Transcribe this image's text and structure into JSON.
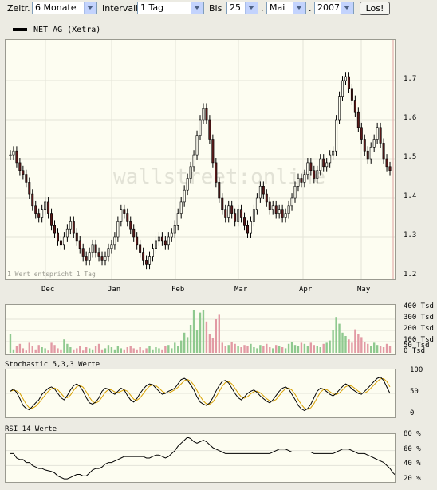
{
  "toolbar": {
    "zeitr_label": "Zeitr.",
    "zeitr_value": "6 Monate",
    "intervall_label": "Intervall",
    "intervall_value": "1 Tag",
    "bis_label": "Bis",
    "day_value": "25",
    "month_value": "Mai",
    "year_value": "2007",
    "sep": ".",
    "go_label": "Los!"
  },
  "legend": {
    "label": "NET AG (Xetra)"
  },
  "main": {
    "note": "1 Wert entspricht 1 Tag",
    "watermark": "wallstreet:online",
    "months": [
      "Dec",
      "Jan",
      "Feb",
      "Mar",
      "Apr",
      "May"
    ],
    "yticks": [
      "1.7",
      "1.6",
      "1.5",
      "1.4",
      "1.3",
      "1.2"
    ]
  },
  "volume": {
    "yticks": [
      "400 Tsd",
      "300 Tsd",
      "200 Tsd",
      "100 Tsd",
      "50 Tsd",
      "0 Tsd"
    ]
  },
  "stochastic": {
    "title": "Stochastic 5,3,3 Werte",
    "yticks": [
      "100",
      "50",
      "0"
    ]
  },
  "rsi": {
    "title": "RSI 14 Werte",
    "yticks": [
      "80 %",
      "60 %",
      "40 %",
      "20 %"
    ]
  },
  "colors": {
    "up": "#fdfdf1",
    "down": "#5a1a1a",
    "vol_up": "#8fc98f",
    "vol_down": "#e29aa4",
    "stoch_k": "#000000",
    "stoch_d": "#d8a000",
    "grid": "#e3e3d8"
  },
  "chart_data": [
    {
      "type": "candlestick",
      "title": "NET AG (Xetra)",
      "x_categories_months": [
        "Dec",
        "Jan",
        "Feb",
        "Mar",
        "Apr",
        "May"
      ],
      "ylim": [
        1.2,
        1.8
      ],
      "close": [
        1.51,
        1.52,
        1.49,
        1.47,
        1.46,
        1.44,
        1.41,
        1.38,
        1.36,
        1.35,
        1.37,
        1.39,
        1.36,
        1.33,
        1.31,
        1.29,
        1.28,
        1.3,
        1.32,
        1.34,
        1.31,
        1.29,
        1.27,
        1.25,
        1.24,
        1.26,
        1.28,
        1.26,
        1.25,
        1.24,
        1.25,
        1.27,
        1.28,
        1.3,
        1.34,
        1.37,
        1.36,
        1.34,
        1.32,
        1.3,
        1.28,
        1.26,
        1.24,
        1.23,
        1.25,
        1.27,
        1.29,
        1.3,
        1.29,
        1.28,
        1.3,
        1.31,
        1.33,
        1.36,
        1.39,
        1.42,
        1.45,
        1.48,
        1.51,
        1.56,
        1.6,
        1.63,
        1.6,
        1.55,
        1.49,
        1.44,
        1.4,
        1.37,
        1.35,
        1.38,
        1.36,
        1.34,
        1.37,
        1.35,
        1.33,
        1.31,
        1.34,
        1.37,
        1.4,
        1.43,
        1.41,
        1.39,
        1.37,
        1.38,
        1.36,
        1.37,
        1.35,
        1.36,
        1.38,
        1.4,
        1.43,
        1.45,
        1.44,
        1.46,
        1.49,
        1.47,
        1.45,
        1.47,
        1.5,
        1.48,
        1.49,
        1.51,
        1.52,
        1.6,
        1.66,
        1.7,
        1.71,
        1.68,
        1.65,
        1.62,
        1.58,
        1.55,
        1.52,
        1.5,
        1.53,
        1.55,
        1.58,
        1.54,
        1.5,
        1.48,
        1.47
      ]
    },
    {
      "type": "bar",
      "title": "",
      "ylim": [
        0,
        400
      ],
      "values": [
        170,
        30,
        60,
        80,
        40,
        20,
        90,
        60,
        30,
        70,
        50,
        40,
        20,
        90,
        70,
        40,
        30,
        120,
        80,
        50,
        30,
        40,
        60,
        20,
        50,
        40,
        30,
        60,
        80,
        30,
        40,
        70,
        50,
        30,
        60,
        40,
        30,
        50,
        60,
        40,
        30,
        50,
        20,
        40,
        60,
        30,
        50,
        40,
        30,
        60,
        70,
        40,
        90,
        60,
        110,
        180,
        140,
        250,
        380,
        200,
        360,
        380,
        280,
        170,
        130,
        300,
        340,
        90,
        60,
        70,
        100,
        80,
        60,
        50,
        70,
        60,
        80,
        50,
        40,
        70,
        60,
        80,
        50,
        40,
        70,
        60,
        50,
        40,
        80,
        100,
        70,
        60,
        90,
        80,
        60,
        90,
        70,
        60,
        50,
        80,
        90,
        110,
        200,
        320,
        260,
        180,
        150,
        120,
        90,
        210,
        170,
        140,
        100,
        80,
        60,
        90,
        70,
        60,
        50,
        80,
        60
      ]
    },
    {
      "type": "line",
      "title": "Stochastic 5,3,3 Werte",
      "ylim": [
        0,
        100
      ],
      "series": [
        {
          "values": [
            55,
            60,
            52,
            38,
            22,
            15,
            12,
            20,
            28,
            35,
            48,
            55,
            62,
            65,
            60,
            50,
            40,
            35,
            45,
            58,
            68,
            72,
            66,
            55,
            40,
            28,
            25,
            30,
            40,
            55,
            62,
            60,
            52,
            48,
            55,
            62,
            58,
            45,
            35,
            30,
            38,
            50,
            60,
            68,
            72,
            70,
            62,
            55,
            48,
            50,
            55,
            58,
            62,
            72,
            82,
            85,
            80,
            70,
            58,
            42,
            30,
            25,
            22,
            28,
            40,
            55,
            68,
            78,
            80,
            74,
            62,
            50,
            40,
            35,
            42,
            50,
            55,
            58,
            52,
            44,
            38,
            32,
            28,
            35,
            45,
            55,
            62,
            65,
            60,
            48,
            36,
            22,
            14,
            10,
            15,
            25,
            40,
            55,
            62,
            60,
            54,
            48,
            44,
            50,
            58,
            66,
            72,
            68,
            60,
            55,
            50,
            48,
            55,
            62,
            70,
            78,
            85,
            88,
            80,
            65,
            50
          ]
        }
      ]
    },
    {
      "type": "line",
      "title": "RSI 14 Werte",
      "ylim": [
        20,
        80
      ],
      "series": [
        {
          "values": [
            56,
            56,
            50,
            48,
            48,
            44,
            44,
            40,
            38,
            36,
            36,
            34,
            33,
            32,
            30,
            26,
            24,
            22,
            22,
            24,
            26,
            28,
            28,
            26,
            26,
            30,
            34,
            36,
            36,
            38,
            42,
            44,
            44,
            46,
            48,
            50,
            52,
            52,
            52,
            52,
            52,
            52,
            52,
            50,
            50,
            52,
            54,
            54,
            52,
            50,
            52,
            56,
            60,
            66,
            70,
            74,
            78,
            76,
            72,
            70,
            72,
            74,
            72,
            68,
            64,
            62,
            60,
            58,
            56,
            56,
            56,
            56,
            56,
            56,
            56,
            56,
            56,
            56,
            56,
            56,
            56,
            56,
            56,
            58,
            60,
            62,
            62,
            62,
            60,
            58,
            58,
            58,
            58,
            58,
            58,
            58,
            56,
            56,
            56,
            56,
            56,
            56,
            56,
            58,
            60,
            62,
            62,
            62,
            60,
            58,
            56,
            56,
            56,
            54,
            52,
            50,
            48,
            46,
            44,
            40,
            36,
            30,
            26
          ]
        }
      ]
    }
  ]
}
